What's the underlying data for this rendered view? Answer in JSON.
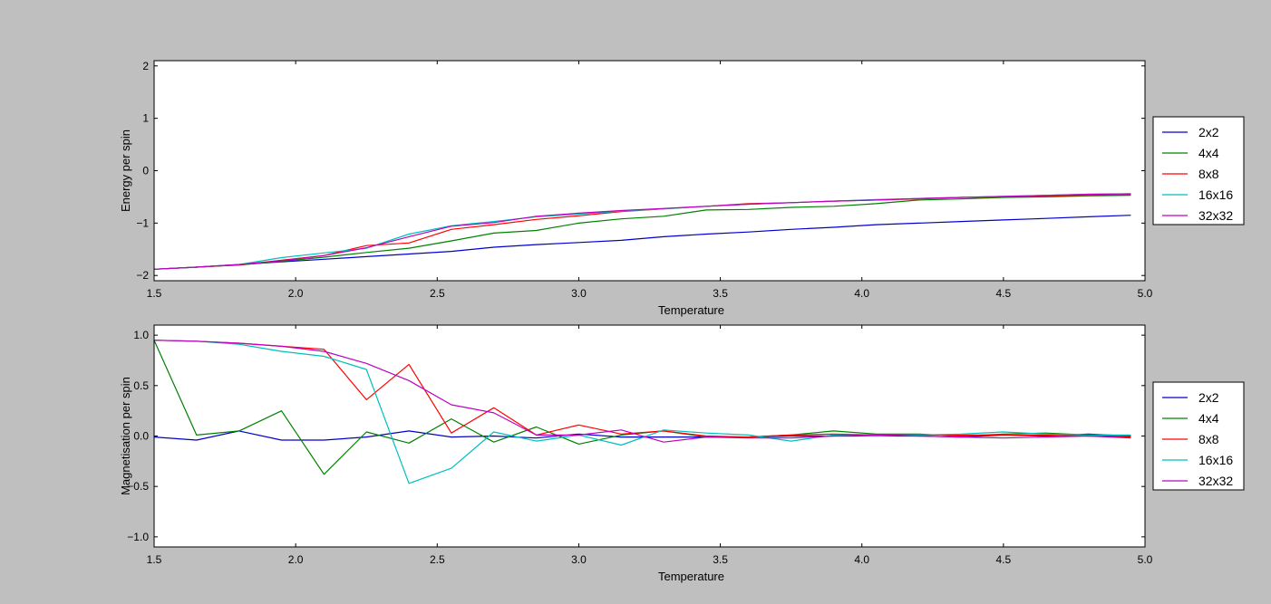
{
  "chart_data": [
    {
      "type": "line",
      "xlabel": "Temperature",
      "ylabel": "Energy per spin",
      "xlim": [
        1.5,
        5.0
      ],
      "ylim": [
        -2.1,
        2.1
      ],
      "xticks": [
        "1.5",
        "2.0",
        "2.5",
        "3.0",
        "3.5",
        "4.0",
        "4.5",
        "5.0"
      ],
      "yticks": [
        "−2",
        "−1",
        "0",
        "1",
        "2"
      ],
      "grid": false,
      "legend_placement": "outside-right",
      "x": [
        1.5,
        1.65,
        1.8,
        1.95,
        2.1,
        2.25,
        2.4,
        2.55,
        2.7,
        2.85,
        3.0,
        3.15,
        3.3,
        3.45,
        3.6,
        3.75,
        3.9,
        4.05,
        4.2,
        4.35,
        4.5,
        4.65,
        4.8,
        4.95
      ],
      "series": [
        {
          "name": "2x2",
          "color": "#0000cc",
          "values": [
            -1.88,
            -1.84,
            -1.79,
            -1.74,
            -1.69,
            -1.64,
            -1.59,
            -1.54,
            -1.46,
            -1.41,
            -1.37,
            -1.33,
            -1.26,
            -1.21,
            -1.17,
            -1.12,
            -1.08,
            -1.03,
            -1.0,
            -0.97,
            -0.94,
            -0.91,
            -0.88,
            -0.85
          ]
        },
        {
          "name": "4x4",
          "color": "#008000",
          "values": [
            -1.88,
            -1.84,
            -1.8,
            -1.73,
            -1.65,
            -1.56,
            -1.48,
            -1.34,
            -1.19,
            -1.14,
            -1.0,
            -0.92,
            -0.87,
            -0.75,
            -0.74,
            -0.7,
            -0.68,
            -0.63,
            -0.56,
            -0.54,
            -0.51,
            -0.5,
            -0.48,
            -0.47
          ]
        },
        {
          "name": "8x8",
          "color": "#ff0000",
          "values": [
            -1.88,
            -1.84,
            -1.8,
            -1.71,
            -1.62,
            -1.43,
            -1.38,
            -1.12,
            -1.03,
            -0.93,
            -0.86,
            -0.78,
            -0.73,
            -0.68,
            -0.63,
            -0.61,
            -0.58,
            -0.56,
            -0.54,
            -0.51,
            -0.5,
            -0.48,
            -0.47,
            -0.46
          ]
        },
        {
          "name": "16x16",
          "color": "#00bfbf",
          "values": [
            -1.88,
            -1.84,
            -1.79,
            -1.66,
            -1.57,
            -1.48,
            -1.21,
            -1.05,
            -0.97,
            -0.88,
            -0.83,
            -0.77,
            -0.73,
            -0.68,
            -0.64,
            -0.61,
            -0.58,
            -0.55,
            -0.53,
            -0.51,
            -0.49,
            -0.47,
            -0.45,
            -0.44
          ]
        },
        {
          "name": "32x32",
          "color": "#bf00bf",
          "values": [
            -1.88,
            -1.84,
            -1.79,
            -1.72,
            -1.62,
            -1.47,
            -1.26,
            -1.06,
            -0.99,
            -0.87,
            -0.81,
            -0.76,
            -0.72,
            -0.68,
            -0.64,
            -0.61,
            -0.58,
            -0.56,
            -0.53,
            -0.51,
            -0.49,
            -0.47,
            -0.45,
            -0.44
          ]
        }
      ]
    },
    {
      "type": "line",
      "xlabel": "Temperature",
      "ylabel": "Magnetisation per spin",
      "xlim": [
        1.5,
        5.0
      ],
      "ylim": [
        -1.1,
        1.1
      ],
      "xticks": [
        "1.5",
        "2.0",
        "2.5",
        "3.0",
        "3.5",
        "4.0",
        "4.5",
        "5.0"
      ],
      "yticks": [
        "−1.0",
        "−0.5",
        "0.0",
        "0.5",
        "1.0"
      ],
      "grid": false,
      "legend_placement": "outside-right",
      "x": [
        1.5,
        1.65,
        1.8,
        1.95,
        2.1,
        2.25,
        2.4,
        2.55,
        2.7,
        2.85,
        3.0,
        3.15,
        3.3,
        3.45,
        3.6,
        3.75,
        3.9,
        4.05,
        4.2,
        4.35,
        4.5,
        4.65,
        4.8,
        4.95
      ],
      "series": [
        {
          "name": "2x2",
          "color": "#0000cc",
          "values": [
            -0.01,
            -0.04,
            0.05,
            -0.04,
            -0.04,
            -0.01,
            0.05,
            -0.01,
            0.0,
            -0.02,
            0.02,
            -0.01,
            -0.01,
            -0.01,
            -0.01,
            0.0,
            0.0,
            0.0,
            0.0,
            -0.01,
            0.01,
            0.0,
            0.02,
            0.0
          ]
        },
        {
          "name": "4x4",
          "color": "#008000",
          "values": [
            0.95,
            0.01,
            0.05,
            0.25,
            -0.38,
            0.04,
            -0.07,
            0.17,
            -0.06,
            0.09,
            -0.08,
            0.01,
            0.05,
            -0.01,
            -0.01,
            0.01,
            0.05,
            0.02,
            0.02,
            0.0,
            0.02,
            0.03,
            0.01,
            0.0
          ]
        },
        {
          "name": "8x8",
          "color": "#ff0000",
          "values": [
            0.95,
            0.94,
            0.92,
            0.89,
            0.86,
            0.36,
            0.71,
            0.03,
            0.28,
            0.01,
            0.11,
            0.02,
            0.05,
            0.0,
            -0.01,
            0.01,
            0.02,
            0.01,
            0.01,
            0.01,
            0.01,
            0.01,
            0.0,
            -0.01
          ]
        },
        {
          "name": "16x16",
          "color": "#00bfbf",
          "values": [
            0.95,
            0.94,
            0.91,
            0.84,
            0.79,
            0.66,
            -0.47,
            -0.32,
            0.04,
            -0.05,
            0.01,
            -0.09,
            0.06,
            0.03,
            0.01,
            -0.05,
            0.01,
            0.0,
            0.01,
            0.02,
            0.04,
            0.02,
            0.01,
            0.01
          ]
        },
        {
          "name": "32x32",
          "color": "#bf00bf",
          "values": [
            0.95,
            0.94,
            0.92,
            0.89,
            0.84,
            0.72,
            0.55,
            0.31,
            0.23,
            0.01,
            0.01,
            0.06,
            -0.06,
            -0.01,
            -0.02,
            -0.02,
            0.0,
            0.01,
            0.0,
            -0.01,
            -0.02,
            -0.01,
            0.0,
            -0.02
          ]
        }
      ]
    }
  ]
}
